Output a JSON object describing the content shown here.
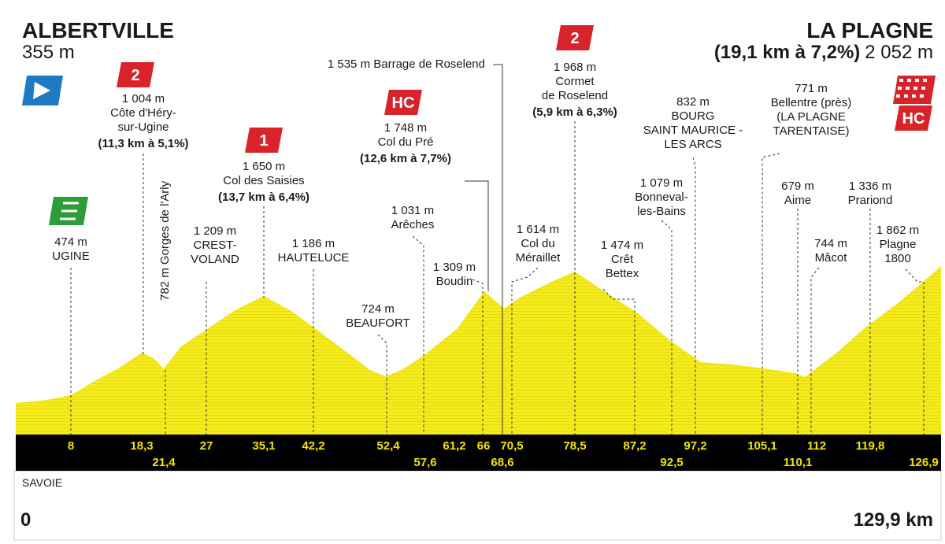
{
  "header": {
    "start": {
      "name": "ALBERTVILLE",
      "altitude": "355 m"
    },
    "finish": {
      "name": "LA PLAGNE",
      "climb": "(19,1 km à 7,2%)",
      "altitude": "2 052 m"
    }
  },
  "waypoints": [
    {
      "lines": [
        "474 m",
        "UGINE"
      ]
    },
    {
      "lines": [
        "1 004 m",
        "Côte d'Héry-",
        "sur-Ugine"
      ],
      "climb": "(11,3 km à 5,1%)"
    },
    {
      "lines": [
        "782 m Gorges de l'Arly"
      ]
    },
    {
      "lines": [
        "1 209 m",
        "CREST-",
        "VOLAND"
      ]
    },
    {
      "lines": [
        "1 650 m",
        "Col des Saisies"
      ],
      "climb": "(13,7 km à 6,4%)"
    },
    {
      "lines": [
        "1 186 m",
        "HAUTELUCE"
      ]
    },
    {
      "lines": [
        "1 031 m",
        "Arêches"
      ]
    },
    {
      "lines": [
        "724 m",
        "BEAUFORT"
      ]
    },
    {
      "lines": [
        "1 309 m",
        "Boudin"
      ]
    },
    {
      "lines": [
        "1 748 m",
        "Col du Pré"
      ],
      "climb": "(12,6 km à 7,7%)"
    },
    {
      "lines": [
        "1 535 m Barrage de Roselend"
      ]
    },
    {
      "lines": [
        "1 614 m",
        "Col du",
        "Méraillet"
      ]
    },
    {
      "lines": [
        "1 968 m",
        "Cormet",
        "de Roselend"
      ],
      "climb": "(5,9 km à 6,3%)"
    },
    {
      "lines": [
        "1 474 m",
        "Crêt",
        "Bettex"
      ]
    },
    {
      "lines": [
        "1 079 m",
        "Bonneval-",
        "les-Bains"
      ]
    },
    {
      "lines": [
        "832 m",
        "BOURG",
        "SAINT MAURICE -",
        "LES ARCS"
      ]
    },
    {
      "lines": [
        "771 m",
        "Bellentre (près)",
        "(LA PLAGNE",
        "TARENTAISE)"
      ]
    },
    {
      "lines": [
        "679 m",
        "Aime"
      ]
    },
    {
      "lines": [
        "744 m",
        "Mâcot"
      ]
    },
    {
      "lines": [
        "1 336 m",
        "Prariond"
      ]
    },
    {
      "lines": [
        "1 862 m",
        "Plagne",
        "1800"
      ]
    }
  ],
  "badges": [
    "2",
    "1",
    "HC",
    "2",
    "HC"
  ],
  "km_top": [
    "8",
    "18,3",
    "27",
    "35,1",
    "42,2",
    "52,4",
    "61,2",
    "66",
    "70,5",
    "78,5",
    "87,2",
    "97,2",
    "105,1",
    "112",
    "119,8"
  ],
  "km_bottom": [
    "21,4",
    "57,6",
    "68,6",
    "92,5",
    "110,1",
    "126,9"
  ],
  "footer": {
    "region": "SAVOIE",
    "start_km": "0",
    "end_km": "129,9 km"
  }
}
